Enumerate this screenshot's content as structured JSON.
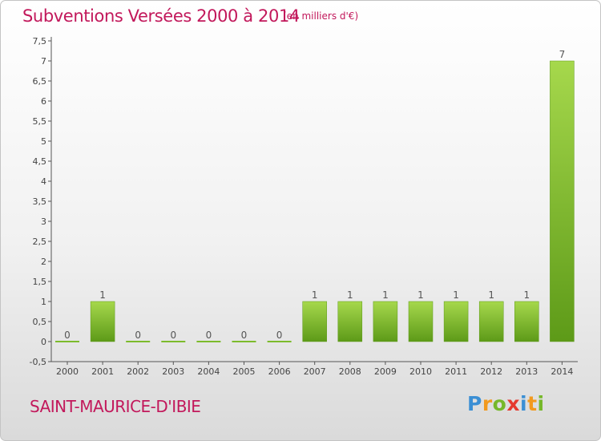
{
  "chart_data": {
    "type": "bar",
    "title": "Subventions Versées 2000 à 2014",
    "subtitle": "(en milliers d'€)",
    "categories": [
      "2000",
      "2001",
      "2002",
      "2003",
      "2004",
      "2005",
      "2006",
      "2007",
      "2008",
      "2009",
      "2010",
      "2011",
      "2012",
      "2013",
      "2014"
    ],
    "values": [
      0,
      1,
      0,
      0,
      0,
      0,
      0,
      1,
      1,
      1,
      1,
      1,
      1,
      1,
      7
    ],
    "data_labels": [
      "0",
      "1",
      "0",
      "0",
      "0",
      "0",
      "0",
      "1",
      "1",
      "1",
      "1",
      "1",
      "1",
      "1",
      "7"
    ],
    "y_ticks": [
      -0.5,
      0,
      0.5,
      1,
      1.5,
      2,
      2.5,
      3,
      3.5,
      4,
      4.5,
      5,
      5.5,
      6,
      6.5,
      7,
      7.5
    ],
    "y_tick_labels": [
      "-0,5",
      "0",
      "0,5",
      "1",
      "1,5",
      "2",
      "2,5",
      "3",
      "3,5",
      "4",
      "4,5",
      "5",
      "5,5",
      "6",
      "6,5",
      "7",
      "7,5"
    ],
    "ylim": [
      -0.5,
      7.5
    ],
    "xlabel": "",
    "ylabel": "",
    "grid": false,
    "bar_color": "#7cbb2c",
    "bar_color_light": "#a6d84c",
    "bar_color_dark": "#5d9a18",
    "label_color": "#c2185b"
  },
  "place_name": "SAINT-MAURICE-D'IBIE",
  "logo": {
    "letters": [
      "P",
      "r",
      "o",
      "x",
      "i",
      "t",
      "i"
    ],
    "colors": [
      "#3b8fd4",
      "#f29a1e",
      "#76b82a",
      "#e53a2f",
      "#3b8fd4",
      "#f29a1e",
      "#76b82a"
    ]
  }
}
